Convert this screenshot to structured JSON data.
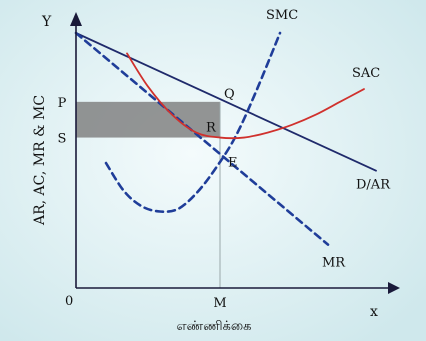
{
  "chart_data": {
    "type": "line",
    "title": "",
    "xlabel": "x",
    "ylabel": "AR, AC, MR & MC",
    "x_caption": "எண்ணிக்கை",
    "y_axis_letter": "Y",
    "origin_label": "0",
    "xlim": [
      0,
      10
    ],
    "ylim": [
      0,
      10
    ],
    "grid": false,
    "series": [
      {
        "name": "D/AR",
        "style": "solid",
        "color": "#1f2a6b",
        "x": [
          0,
          10
        ],
        "y": [
          10,
          4.6
        ]
      },
      {
        "name": "MR",
        "style": "dashed",
        "color": "#1f3d99",
        "x": [
          0,
          8.4
        ],
        "y": [
          10,
          1.7
        ]
      },
      {
        "name": "SMC",
        "style": "dashed",
        "color": "#1f3d99",
        "x": [
          1.0,
          1.6,
          2.2,
          2.8,
          3.4,
          4.0,
          4.6,
          5.3,
          6.0,
          6.8
        ],
        "y": [
          4.9,
          3.8,
          3.2,
          3.0,
          3.1,
          3.7,
          4.6,
          5.9,
          7.7,
          10.0
        ]
      },
      {
        "name": "SAC",
        "style": "solid",
        "color": "#d0312d",
        "x": [
          1.7,
          2.4,
          3.2,
          4.0,
          4.8,
          5.6,
          6.4,
          7.2,
          8.0,
          8.8,
          9.6
        ],
        "y": [
          9.2,
          7.9,
          6.8,
          6.1,
          5.9,
          5.9,
          6.1,
          6.4,
          6.8,
          7.3,
          7.8
        ]
      }
    ],
    "points": [
      {
        "label": "Q",
        "x": 4.8,
        "y": 7.3
      },
      {
        "label": "R",
        "x": 4.8,
        "y": 5.9
      },
      {
        "label": "E",
        "x": 4.8,
        "y": 5.0
      }
    ],
    "levels": [
      {
        "label": "P",
        "y": 7.3
      },
      {
        "label": "S",
        "y": 5.9
      }
    ],
    "quantity": {
      "label": "M",
      "x": 4.8
    },
    "shaded_region": {
      "x": [
        0,
        4.8
      ],
      "y": [
        5.9,
        7.3
      ],
      "color": "#7a7a7a"
    },
    "background": "#e6f3f5"
  }
}
